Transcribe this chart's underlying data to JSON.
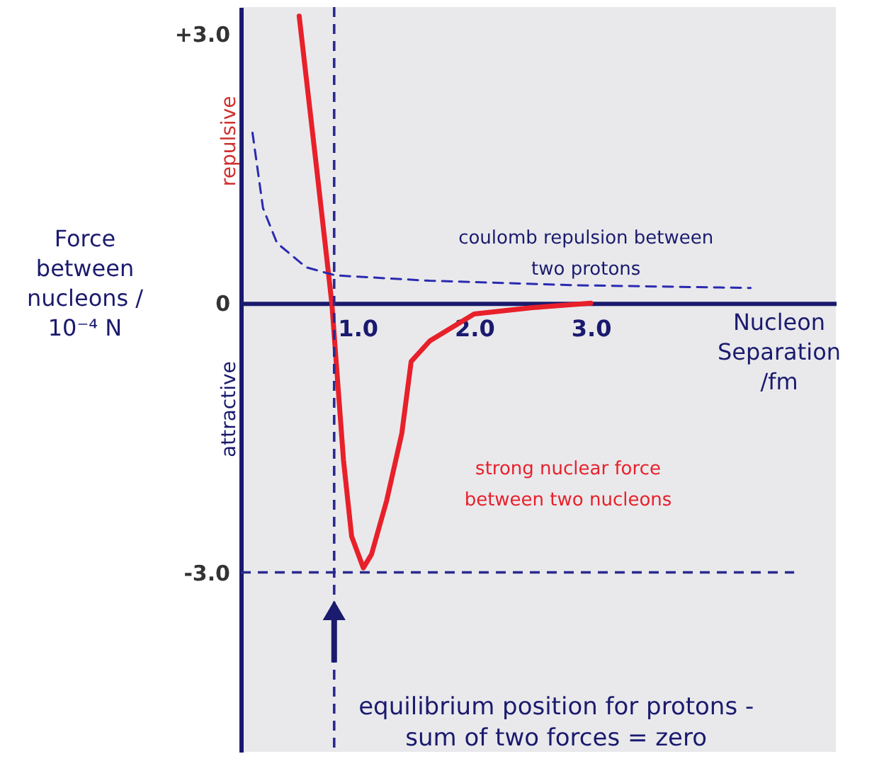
{
  "chart_data": {
    "type": "line",
    "xlabel": "Nucleon Separation /fm",
    "ylabel": "Force between nucleons / 10⁻⁴ N",
    "xlim": [
      0,
      5.1
    ],
    "ylim": [
      -5.0,
      3.3
    ],
    "xticks": [
      {
        "value": 1,
        "label": "1.0"
      },
      {
        "value": 2,
        "label": "2.0"
      },
      {
        "value": 3,
        "label": "3.0"
      }
    ],
    "yticks": [
      {
        "value": 3,
        "label": "+3.0"
      },
      0,
      {
        "value": -3,
        "label": "-3.0"
      }
    ],
    "marker": "none",
    "series": [
      {
        "color": "#e8202a",
        "line_style": "solid",
        "x": [
          0.5,
          0.65,
          0.78,
          0.88,
          0.95,
          1.05,
          1.12,
          1.25,
          1.38,
          1.46,
          1.62,
          2.0,
          2.5,
          3.0
        ],
        "values": [
          3.2,
          1.5,
          0,
          -1.75,
          -2.6,
          -2.95,
          -2.8,
          -2.2,
          -1.45,
          -0.65,
          -0.42,
          -0.12,
          -0.05,
          0
        ]
      },
      {
        "color": "#2a2ab0",
        "line_style": "dashed",
        "x": [
          0.1,
          0.19,
          0.31,
          0.56,
          0.81,
          1.62,
          2.87,
          4.37
        ],
        "values": [
          1.9,
          1.06,
          0.67,
          0.4,
          0.31,
          0.25,
          0.2,
          0.17
        ]
      }
    ],
    "ref_lines": [
      {
        "axis": "x",
        "value": 0.8,
        "color": "#2a2a90",
        "line_style": "dashed"
      },
      {
        "axis": "y",
        "value": -3.0,
        "color": "#2a2a90",
        "line_style": "dashed"
      }
    ],
    "annotations": [
      "coulomb repulsion between\ntwo protons",
      "strong nuclear force\nbetween two nucleons",
      "repulsive",
      "attractive",
      "equilibrium position for protons -\nsum of two forces = zero"
    ]
  }
}
